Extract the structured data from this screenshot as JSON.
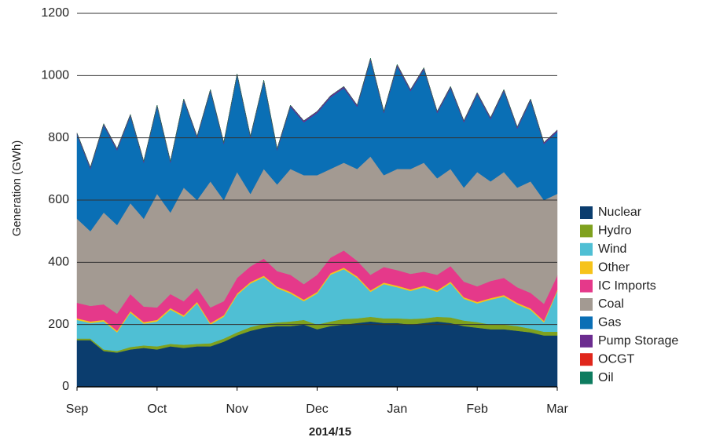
{
  "chart_data": {
    "type": "stacked_area",
    "y_label": "Generation (GWh)",
    "x_label": "2014/15",
    "categories": [
      "Sep",
      null,
      null,
      null,
      null,
      null,
      "Oct",
      null,
      null,
      null,
      null,
      null,
      "Nov",
      null,
      null,
      null,
      null,
      null,
      "Dec",
      null,
      null,
      null,
      null,
      null,
      "Jan",
      null,
      null,
      null,
      null,
      null,
      "Feb",
      null,
      null,
      null,
      null,
      null,
      "Mar"
    ],
    "ylim": [
      0,
      1200
    ],
    "yticks": [
      0,
      200,
      400,
      600,
      800,
      1000,
      1200
    ],
    "grid": true,
    "legend": "right",
    "series": [
      {
        "name": "Nuclear",
        "color": "#0b3d6e",
        "values": [
          150,
          150,
          115,
          110,
          120,
          125,
          120,
          130,
          125,
          130,
          130,
          145,
          165,
          180,
          190,
          195,
          195,
          200,
          185,
          195,
          200,
          205,
          210,
          205,
          205,
          200,
          205,
          210,
          205,
          195,
          190,
          185,
          185,
          180,
          175,
          165,
          165
        ]
      },
      {
        "name": "Hydro",
        "color": "#7fa11e",
        "values": [
          5,
          5,
          5,
          5,
          8,
          8,
          10,
          8,
          10,
          8,
          10,
          10,
          10,
          12,
          12,
          12,
          15,
          15,
          15,
          15,
          18,
          15,
          15,
          15,
          15,
          18,
          15,
          15,
          18,
          18,
          18,
          15,
          15,
          15,
          12,
          12,
          12
        ]
      },
      {
        "name": "Wind",
        "color": "#4fbfd4",
        "values": [
          60,
          50,
          90,
          60,
          110,
          70,
          80,
          110,
          90,
          130,
          60,
          70,
          120,
          140,
          150,
          110,
          90,
          60,
          100,
          150,
          160,
          130,
          80,
          110,
          100,
          90,
          100,
          80,
          110,
          70,
          60,
          80,
          90,
          70,
          60,
          30,
          130
        ]
      },
      {
        "name": "Other",
        "color": "#f6c31a",
        "values": [
          5,
          5,
          5,
          5,
          5,
          5,
          5,
          5,
          5,
          5,
          5,
          5,
          5,
          5,
          5,
          5,
          5,
          5,
          5,
          5,
          5,
          5,
          5,
          5,
          5,
          5,
          5,
          5,
          5,
          5,
          5,
          5,
          5,
          5,
          5,
          5,
          5
        ]
      },
      {
        "name": "IC Imports",
        "color": "#e5398a",
        "values": [
          50,
          50,
          50,
          55,
          55,
          50,
          40,
          45,
          45,
          45,
          50,
          45,
          50,
          50,
          55,
          50,
          55,
          50,
          55,
          50,
          55,
          50,
          50,
          50,
          50,
          50,
          45,
          50,
          50,
          50,
          50,
          55,
          55,
          50,
          50,
          55,
          45
        ]
      },
      {
        "name": "Coal",
        "color": "#a39a92",
        "values": [
          270,
          240,
          295,
          285,
          292,
          282,
          365,
          262,
          365,
          282,
          405,
          325,
          340,
          233,
          288,
          278,
          340,
          350,
          320,
          285,
          282,
          295,
          380,
          295,
          325,
          337,
          350,
          310,
          312,
          302,
          367,
          320,
          340,
          320,
          358,
          333,
          263
        ]
      },
      {
        "name": "Gas",
        "color": "#0a6fb5",
        "values": [
          270,
          200,
          280,
          240,
          280,
          180,
          280,
          160,
          280,
          200,
          290,
          180,
          310,
          180,
          280,
          110,
          200,
          170,
          200,
          230,
          240,
          200,
          310,
          200,
          330,
          250,
          300,
          210,
          260,
          210,
          250,
          200,
          260,
          190,
          260,
          180,
          200
        ]
      },
      {
        "name": "Pump Storage",
        "color": "#6b2c8f",
        "values": [
          5,
          5,
          5,
          5,
          5,
          5,
          5,
          5,
          5,
          5,
          5,
          5,
          5,
          5,
          5,
          5,
          5,
          5,
          5,
          5,
          5,
          5,
          5,
          5,
          5,
          5,
          5,
          5,
          5,
          5,
          5,
          5,
          5,
          5,
          5,
          5,
          5
        ]
      },
      {
        "name": "OCGT",
        "color": "#e0261b",
        "values": [
          0,
          0,
          0,
          0,
          0,
          0,
          0,
          0,
          0,
          0,
          0,
          0,
          0,
          0,
          0,
          0,
          0,
          0,
          0,
          0,
          0,
          0,
          1,
          0,
          1,
          0,
          0,
          0,
          0,
          0,
          0,
          0,
          0,
          0,
          0,
          0,
          0
        ]
      },
      {
        "name": "Oil",
        "color": "#0d7c5f",
        "values": [
          0,
          0,
          0,
          0,
          0,
          0,
          0,
          0,
          0,
          0,
          0,
          0,
          0,
          0,
          0,
          0,
          0,
          0,
          0,
          0,
          0,
          0,
          0,
          0,
          0,
          0,
          0,
          0,
          0,
          0,
          0,
          0,
          0,
          0,
          0,
          0,
          0
        ]
      }
    ]
  }
}
